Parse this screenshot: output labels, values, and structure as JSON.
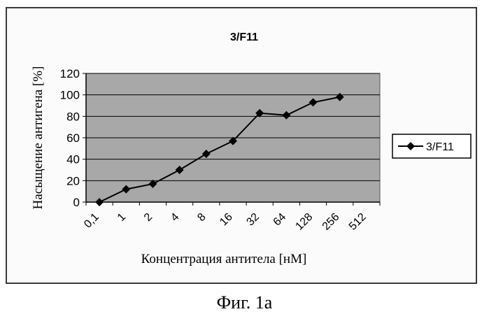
{
  "caption": "Фиг. 1а",
  "chart_data": {
    "type": "line",
    "title": "3/F11",
    "xlabel": "Концентрация антитела [нМ]",
    "ylabel": "Насыщение антигена [%]",
    "categories": [
      "0,1",
      "1",
      "2",
      "4",
      "8",
      "16",
      "32",
      "64",
      "128",
      "256",
      "512"
    ],
    "ylim": [
      0,
      120
    ],
    "yticks": [
      0,
      20,
      40,
      60,
      80,
      100,
      120
    ],
    "grid": true,
    "legend_position": "right",
    "series": [
      {
        "name": "3/F11",
        "marker": "diamond",
        "color": "#000000",
        "points": [
          {
            "x": 0.5,
            "y": 0
          },
          {
            "x": 1.5,
            "y": 12
          },
          {
            "x": 2.5,
            "y": 17
          },
          {
            "x": 3.5,
            "y": 30
          },
          {
            "x": 4.5,
            "y": 45
          },
          {
            "x": 5.5,
            "y": 57
          },
          {
            "x": 6.5,
            "y": 83
          },
          {
            "x": 7.5,
            "y": 81
          },
          {
            "x": 8.5,
            "y": 93
          },
          {
            "x": 9.5,
            "y": 98
          }
        ]
      }
    ],
    "colors": {
      "plot_bg": "#a8a8a8",
      "grid": "#000000",
      "line": "#000000"
    }
  }
}
